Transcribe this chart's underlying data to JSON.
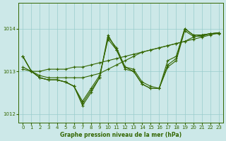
{
  "xlabel": "Graphe pression niveau de la mer (hPa)",
  "background_color": "#cce8e8",
  "grid_color": "#99cccc",
  "line_color": "#336600",
  "xlim": [
    -0.5,
    23.5
  ],
  "ylim": [
    1011.8,
    1014.6
  ],
  "yticks": [
    1012,
    1013,
    1014
  ],
  "xticks": [
    0,
    1,
    2,
    3,
    4,
    5,
    6,
    7,
    8,
    9,
    10,
    11,
    12,
    13,
    14,
    15,
    16,
    17,
    18,
    19,
    20,
    21,
    22,
    23
  ],
  "series": [
    {
      "x": [
        0,
        1,
        2,
        3,
        4,
        5,
        6,
        7,
        8,
        9,
        10,
        11,
        12,
        13,
        14,
        15,
        16,
        17,
        18,
        19,
        20,
        21,
        22,
        23
      ],
      "y": [
        1013.05,
        1013.0,
        1013.0,
        1013.05,
        1013.05,
        1013.05,
        1013.1,
        1013.1,
        1013.15,
        1013.2,
        1013.25,
        1013.3,
        1013.35,
        1013.4,
        1013.45,
        1013.5,
        1013.55,
        1013.6,
        1013.65,
        1013.7,
        1013.75,
        1013.8,
        1013.85,
        1013.9
      ]
    },
    {
      "x": [
        0,
        1,
        2,
        3,
        4,
        5,
        6,
        7,
        8,
        9,
        10,
        11,
        12,
        13,
        14,
        15,
        16,
        17,
        18,
        19,
        20,
        21,
        22,
        23
      ],
      "y": [
        1013.1,
        1013.0,
        1012.9,
        1012.85,
        1012.85,
        1012.85,
        1012.85,
        1012.85,
        1012.9,
        1012.95,
        1013.05,
        1013.15,
        1013.25,
        1013.35,
        1013.45,
        1013.5,
        1013.55,
        1013.6,
        1013.65,
        1013.7,
        1013.8,
        1013.85,
        1013.88,
        1013.9
      ]
    },
    {
      "x": [
        0,
        1,
        2,
        3,
        4,
        5,
        6,
        7,
        8,
        9,
        10,
        11,
        12,
        13,
        14,
        15,
        16,
        17,
        18,
        19,
        20,
        21,
        22,
        23
      ],
      "y": [
        1013.35,
        1013.0,
        1012.85,
        1012.8,
        1012.8,
        1012.75,
        1012.65,
        1012.25,
        1012.55,
        1012.85,
        1013.8,
        1013.55,
        1013.1,
        1013.05,
        1012.75,
        1012.65,
        1012.6,
        1013.25,
        1013.35,
        1014.0,
        1013.85,
        1013.85,
        1013.88,
        1013.9
      ]
    },
    {
      "x": [
        0,
        1,
        2,
        3,
        4,
        5,
        6,
        7,
        8,
        9,
        10,
        11,
        12,
        13,
        14,
        15,
        16,
        17,
        18,
        19,
        20,
        21,
        22,
        23
      ],
      "y": [
        1013.35,
        1013.0,
        1012.85,
        1012.8,
        1012.8,
        1012.75,
        1012.65,
        1012.2,
        1012.5,
        1012.85,
        1013.85,
        1013.5,
        1013.05,
        1013.0,
        1012.7,
        1012.6,
        1012.6,
        1013.15,
        1013.3,
        1014.0,
        1013.85,
        1013.85,
        1013.88,
        1013.9
      ]
    },
    {
      "x": [
        0,
        1,
        2,
        3,
        4,
        5,
        6,
        7,
        8,
        9,
        10,
        11,
        12,
        13,
        14,
        15,
        16,
        17,
        18,
        19,
        20,
        21,
        22,
        23
      ],
      "y": [
        1013.35,
        1013.0,
        1012.85,
        1012.8,
        1012.8,
        1012.75,
        1012.65,
        1012.3,
        1012.6,
        1012.9,
        1013.75,
        1013.5,
        1013.1,
        1013.0,
        1012.7,
        1012.6,
        1012.6,
        1013.1,
        1013.25,
        1013.95,
        1013.82,
        1013.82,
        1013.88,
        1013.88
      ]
    }
  ]
}
